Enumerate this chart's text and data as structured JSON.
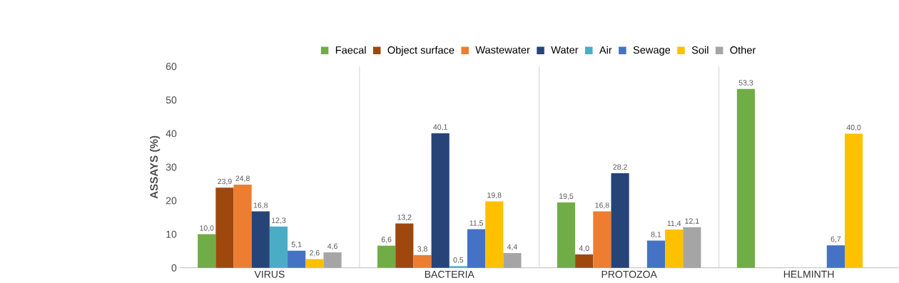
{
  "chart_data": {
    "type": "bar",
    "ylabel": "ASSAYS (%)",
    "categories": [
      "VIRUS",
      "BACTERIA",
      "PROTOZOA",
      "HELMINTH"
    ],
    "ylim": [
      0,
      60
    ],
    "yticks": [
      0,
      10,
      20,
      30,
      40,
      50,
      60
    ],
    "legend": "top",
    "series": [
      {
        "name": "Faecal",
        "color": "#70ad47",
        "values": [
          10.0,
          6.6,
          19.5,
          53.3
        ],
        "value_labels": [
          "10,0",
          "6,6",
          "19,5",
          "53,3"
        ]
      },
      {
        "name": "Object surface",
        "color": "#9e480e",
        "values": [
          23.9,
          13.2,
          4.0,
          null
        ],
        "value_labels": [
          "23,9",
          "13,2",
          "4,0",
          null
        ]
      },
      {
        "name": "Wastewater",
        "color": "#ed7d31",
        "values": [
          24.8,
          3.8,
          16.8,
          null
        ],
        "value_labels": [
          "24,8",
          "3,8",
          "16,8",
          null
        ]
      },
      {
        "name": "Water",
        "color": "#264478",
        "values": [
          16.8,
          40.1,
          28.2,
          null
        ],
        "value_labels": [
          "16,8",
          "40,1",
          "28,2",
          null
        ]
      },
      {
        "name": "Air",
        "color": "#4bacc6",
        "values": [
          12.3,
          0.5,
          null,
          null
        ],
        "value_labels": [
          "12,3",
          "0,5",
          null,
          null
        ]
      },
      {
        "name": "Sewage",
        "color": "#4472c4",
        "values": [
          5.1,
          11.5,
          8.1,
          6.7
        ],
        "value_labels": [
          "5,1",
          "11,5",
          "8,1",
          "6,7"
        ]
      },
      {
        "name": "Soil",
        "color": "#ffc000",
        "values": [
          2.6,
          19.8,
          11.4,
          40.0
        ],
        "value_labels": [
          "2,6",
          "19,8",
          "11,4",
          "40,0"
        ]
      },
      {
        "name": "Other",
        "color": "#a5a5a5",
        "values": [
          4.6,
          4.4,
          12.1,
          null
        ],
        "value_labels": [
          "4,6",
          "4,4",
          "12,1",
          null
        ]
      }
    ]
  }
}
